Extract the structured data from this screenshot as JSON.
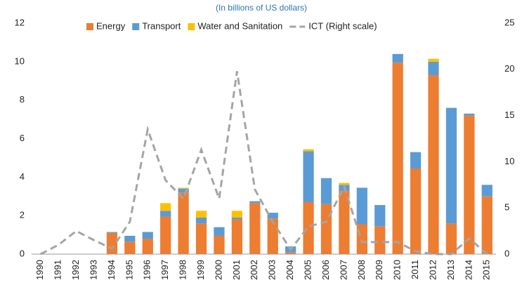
{
  "chart_data": {
    "type": "bar",
    "subtitle": "(In billions of US dollars)",
    "categories": [
      "1990",
      "1991",
      "1992",
      "1993",
      "1994",
      "1995",
      "1996",
      "1997",
      "1998",
      "1999",
      "2000",
      "2001",
      "2002",
      "2003",
      "2004",
      "2005",
      "2006",
      "2007",
      "2008",
      "2009",
      "2010",
      "2011",
      "2012",
      "2013",
      "2014",
      "2015"
    ],
    "series": [
      {
        "name": "Energy",
        "color": "#ed7d31",
        "values": [
          0,
          0,
          0,
          0,
          1.1,
          0.65,
          0.8,
          1.95,
          3.2,
          1.6,
          0.95,
          1.8,
          2.65,
          1.85,
          0.1,
          2.7,
          2.6,
          3.3,
          1.55,
          1.45,
          9.95,
          4.45,
          9.3,
          1.6,
          7.2,
          3.0
        ]
      },
      {
        "name": "Transport",
        "color": "#5b9bd5",
        "values": [
          0,
          0,
          0,
          0,
          0.05,
          0.3,
          0.35,
          0.3,
          0.2,
          0.3,
          0.45,
          0.1,
          0.1,
          0.3,
          0.3,
          2.65,
          1.35,
          0.3,
          1.9,
          1.1,
          0.45,
          0.85,
          0.7,
          6.0,
          0.1,
          0.6
        ]
      },
      {
        "name": "Water and Sanitation",
        "color": "#ffc000",
        "values": [
          0,
          0,
          0,
          0,
          0,
          0,
          0,
          0.4,
          0.05,
          0.35,
          0,
          0.35,
          0,
          0,
          0,
          0.1,
          0,
          0.1,
          0,
          0,
          0,
          0,
          0.15,
          0,
          0,
          0
        ]
      },
      {
        "name": "ICT (Right scale)",
        "color": "#a5a5a5",
        "type": "line",
        "dash": true,
        "axis": "y2",
        "values": [
          0,
          1,
          2.5,
          1.5,
          0.6,
          3.5,
          13.5,
          8,
          6,
          11.3,
          6,
          19.8,
          7,
          3.5,
          0.5,
          3,
          3.5,
          7.3,
          1.3,
          1.3,
          1.3,
          0.3,
          0,
          0,
          1.7,
          0
        ]
      }
    ],
    "ylim": [
      0,
      12
    ],
    "yticks": [
      0,
      2,
      4,
      6,
      8,
      10,
      12
    ],
    "y2lim": [
      0,
      25
    ],
    "y2ticks": [
      0,
      5,
      10,
      15,
      20,
      25
    ],
    "stacked": true
  }
}
